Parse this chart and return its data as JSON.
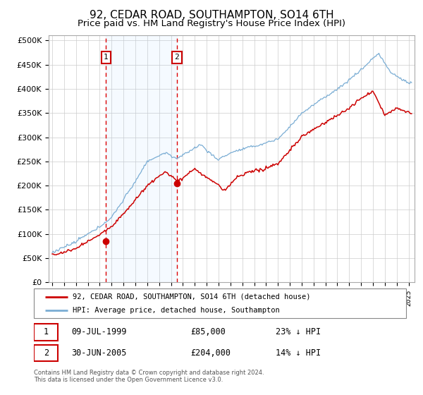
{
  "title": "92, CEDAR ROAD, SOUTHAMPTON, SO14 6TH",
  "subtitle": "Price paid vs. HM Land Registry's House Price Index (HPI)",
  "title_fontsize": 11,
  "subtitle_fontsize": 9.5,
  "background_color": "#ffffff",
  "grid_color": "#cccccc",
  "ylabel_ticks": [
    "£0",
    "£50K",
    "£100K",
    "£150K",
    "£200K",
    "£250K",
    "£300K",
    "£350K",
    "£400K",
    "£450K",
    "£500K"
  ],
  "ytick_values": [
    0,
    50000,
    100000,
    150000,
    200000,
    250000,
    300000,
    350000,
    400000,
    450000,
    500000
  ],
  "ylim": [
    0,
    510000
  ],
  "hpi_color": "#7aadd4",
  "price_color": "#cc0000",
  "sale1_year": 1999.52,
  "sale1_price": 85000,
  "sale2_year": 2005.49,
  "sale2_price": 204000,
  "sale1_date": "09-JUL-1999",
  "sale1_hpi_diff": "23% ↓ HPI",
  "sale2_date": "30-JUN-2005",
  "sale2_hpi_diff": "14% ↓ HPI",
  "xmin": 1994.7,
  "xmax": 2025.5,
  "legend_line1": "92, CEDAR ROAD, SOUTHAMPTON, SO14 6TH (detached house)",
  "legend_line2": "HPI: Average price, detached house, Southampton",
  "footnote": "Contains HM Land Registry data © Crown copyright and database right 2024.\nThis data is licensed under the Open Government Licence v3.0."
}
